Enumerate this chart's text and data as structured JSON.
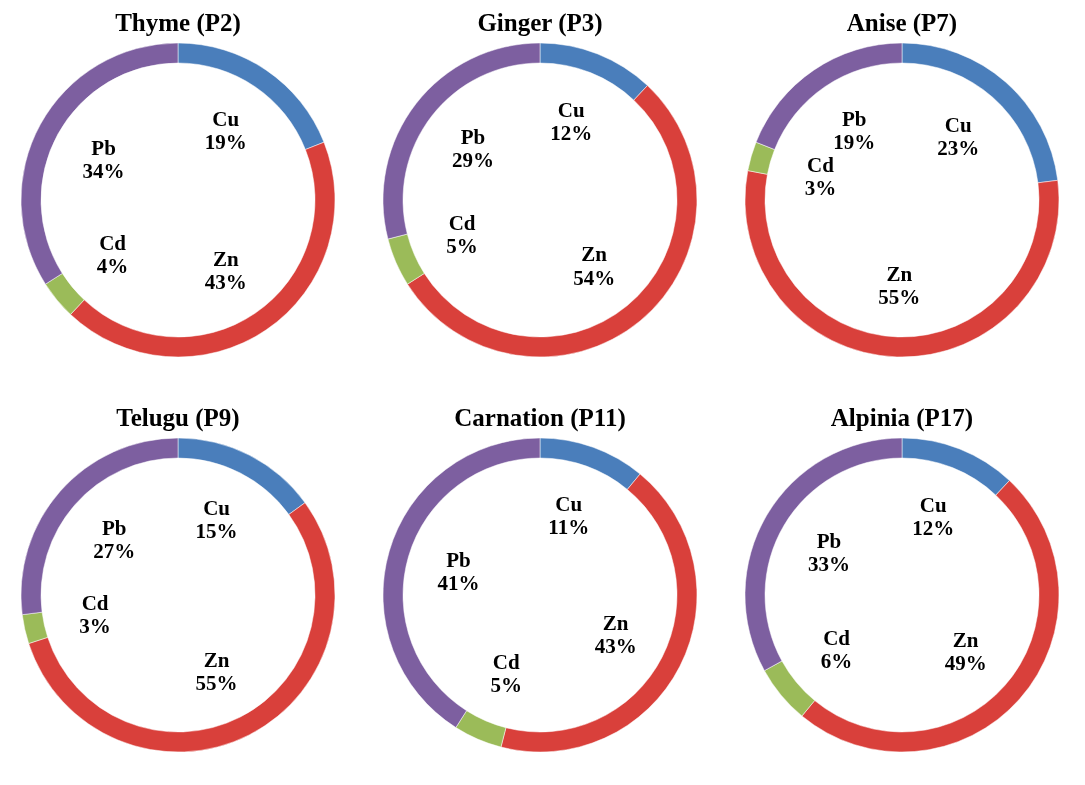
{
  "chart_data": [
    {
      "type": "donut",
      "title": "Thyme (P2)",
      "categories": [
        "Cu",
        "Zn",
        "Cd",
        "Pb"
      ],
      "values": [
        19,
        43,
        4,
        34
      ],
      "value_labels": [
        "19%",
        "43%",
        "4%",
        "34%"
      ],
      "colors": [
        "#4a7ebb",
        "#d9403b",
        "#9bbb59",
        "#7d5fa0"
      ]
    },
    {
      "type": "donut",
      "title": "Ginger (P3)",
      "categories": [
        "Cu",
        "Zn",
        "Cd",
        "Pb"
      ],
      "values": [
        12,
        54,
        5,
        29
      ],
      "value_labels": [
        "12%",
        "54%",
        "5%",
        "29%"
      ],
      "colors": [
        "#4a7ebb",
        "#d9403b",
        "#9bbb59",
        "#7d5fa0"
      ]
    },
    {
      "type": "donut",
      "title": "Anise (P7)",
      "categories": [
        "Cu",
        "Zn",
        "Cd",
        "Pb"
      ],
      "values": [
        23,
        55,
        3,
        19
      ],
      "value_labels": [
        "23%",
        "55%",
        "3%",
        "19%"
      ],
      "colors": [
        "#4a7ebb",
        "#d9403b",
        "#9bbb59",
        "#7d5fa0"
      ]
    },
    {
      "type": "donut",
      "title": "Telugu (P9)",
      "categories": [
        "Cu",
        "Zn",
        "Cd",
        "Pb"
      ],
      "values": [
        15,
        55,
        3,
        27
      ],
      "value_labels": [
        "15%",
        "55%",
        "3%",
        "27%"
      ],
      "colors": [
        "#4a7ebb",
        "#d9403b",
        "#9bbb59",
        "#7d5fa0"
      ]
    },
    {
      "type": "donut",
      "title": "Carnation (P11)",
      "categories": [
        "Cu",
        "Zn",
        "Cd",
        "Pb"
      ],
      "values": [
        11,
        43,
        5,
        41
      ],
      "value_labels": [
        "11%",
        "43%",
        "5%",
        "41%"
      ],
      "colors": [
        "#4a7ebb",
        "#d9403b",
        "#9bbb59",
        "#7d5fa0"
      ]
    },
    {
      "type": "donut",
      "title": "Alpinia (P17)",
      "categories": [
        "Cu",
        "Zn",
        "Cd",
        "Pb"
      ],
      "values": [
        12,
        49,
        6,
        33
      ],
      "value_labels": [
        "12%",
        "49%",
        "6%",
        "33%"
      ],
      "colors": [
        "#4a7ebb",
        "#d9403b",
        "#9bbb59",
        "#7d5fa0"
      ]
    }
  ]
}
